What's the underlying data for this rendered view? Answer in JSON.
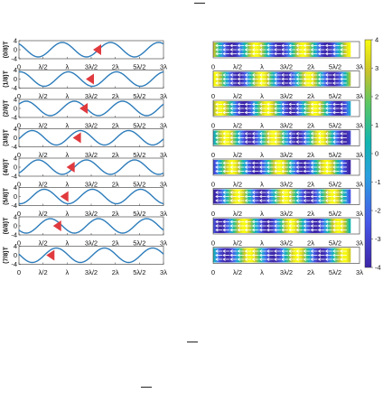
{
  "chart_data": [
    {
      "type": "line",
      "x_tick_labels": [
        "0",
        "λ/2",
        "λ",
        "3λ/2",
        "2λ",
        "5λ/2",
        "3λ"
      ],
      "xlim": [
        0,
        3
      ],
      "x_unit": "λ",
      "ylim": [
        -4,
        4
      ],
      "y_ticks": [
        "4",
        "0",
        "-4"
      ],
      "panels": [
        {
          "label": "(0/8)T",
          "wave_phase_fraction": 0.0,
          "marker_x": 1.65
        },
        {
          "label": "(1/8)T",
          "wave_phase_fraction": 0.125,
          "marker_x": 1.5
        },
        {
          "label": "(2/8)T",
          "wave_phase_fraction": 0.25,
          "marker_x": 1.37
        },
        {
          "label": "(3/8)T",
          "wave_phase_fraction": 0.375,
          "marker_x": 1.23
        },
        {
          "label": "(4/8)T",
          "wave_phase_fraction": 0.5,
          "marker_x": 1.1
        },
        {
          "label": "(5/8)T",
          "wave_phase_fraction": 0.625,
          "marker_x": 0.97
        },
        {
          "label": "(6/8)T",
          "wave_phase_fraction": 0.75,
          "marker_x": 0.82
        },
        {
          "label": "(7/8)T",
          "wave_phase_fraction": 0.875,
          "marker_x": 0.68
        }
      ],
      "series_color": "#2b7bba",
      "marker_color": "#e03a3e"
    },
    {
      "type": "heatmap",
      "x_tick_labels": [
        "0",
        "λ/2",
        "λ",
        "3λ/2",
        "2λ",
        "5λ/2",
        "3λ"
      ],
      "xlim": [
        0,
        3
      ],
      "colorbar_ticks": [
        "4",
        "3",
        "2",
        "1",
        "0",
        "-1",
        "-2",
        "-3",
        "-4"
      ],
      "colorbar_range": [
        -4,
        4
      ],
      "colormap": "parula",
      "panel_count": 8,
      "arrows": "white quiver arrows pointing left"
    }
  ]
}
